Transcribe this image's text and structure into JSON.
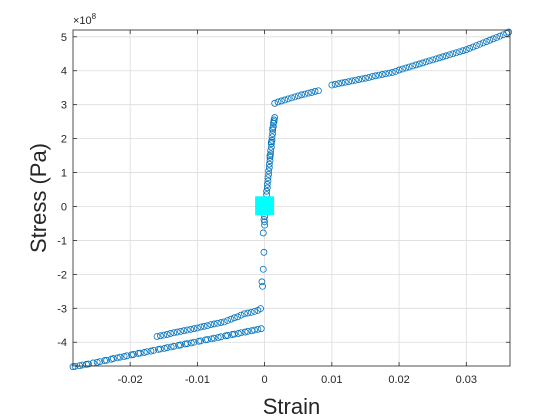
{
  "chart_data": {
    "type": "scatter",
    "xlabel": "Strain",
    "ylabel": "Stress (Pa)",
    "y_exponent_label": "×10",
    "y_exponent_power": "8",
    "xlim": [
      -0.0285,
      0.0365
    ],
    "ylim": [
      -4.7,
      5.2
    ],
    "y_scale": 100000000,
    "grid": true,
    "x_ticks": [
      -0.02,
      -0.01,
      0,
      0.01,
      0.02,
      0.03
    ],
    "x_tick_labels": [
      "-0.02",
      "-0.01",
      "0",
      "0.01",
      "0.02",
      "0.03"
    ],
    "y_ticks": [
      -4,
      -3,
      -2,
      -1,
      0,
      1,
      2,
      3,
      4,
      5
    ],
    "y_tick_labels": [
      "-4",
      "-3",
      "-2",
      "-1",
      "0",
      "1",
      "2",
      "3",
      "4",
      "5"
    ],
    "marker_color": "#0072BD",
    "highlight_color": "#00FFFF",
    "series": [
      {
        "marker": "circle",
        "color": "#0072BD",
        "points": [
          [
            -0.0285,
            -4.72
          ],
          [
            -0.0275,
            -4.69
          ],
          [
            -0.0265,
            -4.65
          ],
          [
            -0.0255,
            -4.61
          ],
          [
            -0.0245,
            -4.57
          ],
          [
            -0.0235,
            -4.53
          ],
          [
            -0.0225,
            -4.48
          ],
          [
            -0.0215,
            -4.44
          ],
          [
            -0.0205,
            -4.4
          ],
          [
            -0.0195,
            -4.36
          ],
          [
            -0.0185,
            -4.32
          ],
          [
            -0.0175,
            -4.28
          ],
          [
            -0.0165,
            -4.24
          ],
          [
            -0.0155,
            -4.2
          ],
          [
            -0.0145,
            -4.16
          ],
          [
            -0.0135,
            -4.12
          ],
          [
            -0.0125,
            -4.08
          ],
          [
            -0.0115,
            -4.04
          ],
          [
            -0.0105,
            -4.0
          ],
          [
            -0.0095,
            -3.96
          ],
          [
            -0.0085,
            -3.92
          ],
          [
            -0.0075,
            -3.88
          ],
          [
            -0.0065,
            -3.84
          ],
          [
            -0.0055,
            -3.8
          ],
          [
            -0.0045,
            -3.76
          ],
          [
            -0.0035,
            -3.72
          ],
          [
            -0.0025,
            -3.68
          ],
          [
            -0.0015,
            -3.64
          ],
          [
            -0.0005,
            -3.6
          ],
          [
            -0.0282,
            -4.71
          ],
          [
            -0.0271,
            -4.67
          ],
          [
            -0.0262,
            -4.64
          ],
          [
            -0.0249,
            -4.59
          ],
          [
            -0.0238,
            -4.54
          ],
          [
            -0.0228,
            -4.5
          ],
          [
            -0.0219,
            -4.46
          ],
          [
            -0.0209,
            -4.42
          ],
          [
            -0.0198,
            -4.37
          ],
          [
            -0.0188,
            -4.33
          ],
          [
            -0.0179,
            -4.3
          ],
          [
            -0.0169,
            -4.26
          ],
          [
            -0.0158,
            -4.21
          ],
          [
            -0.0149,
            -4.18
          ],
          [
            -0.0139,
            -4.14
          ],
          [
            -0.0128,
            -4.09
          ],
          [
            -0.0118,
            -4.05
          ],
          [
            -0.0109,
            -4.02
          ],
          [
            -0.0098,
            -3.97
          ],
          [
            -0.0088,
            -3.93
          ],
          [
            -0.0079,
            -3.9
          ],
          [
            -0.0069,
            -3.86
          ],
          [
            -0.0058,
            -3.81
          ],
          [
            -0.0048,
            -3.77
          ],
          [
            -0.0039,
            -3.74
          ],
          [
            -0.0029,
            -3.7
          ],
          [
            -0.0019,
            -3.66
          ],
          [
            -0.001,
            -3.62
          ],
          [
            -0.016,
            -3.83
          ],
          [
            -0.015,
            -3.79
          ],
          [
            -0.014,
            -3.74
          ],
          [
            -0.013,
            -3.7
          ],
          [
            -0.012,
            -3.66
          ],
          [
            -0.011,
            -3.62
          ],
          [
            -0.01,
            -3.58
          ],
          [
            -0.009,
            -3.53
          ],
          [
            -0.008,
            -3.48
          ],
          [
            -0.007,
            -3.44
          ],
          [
            -0.006,
            -3.4
          ],
          [
            -0.005,
            -3.32
          ],
          [
            -0.004,
            -3.25
          ],
          [
            -0.003,
            -3.16
          ],
          [
            -0.002,
            -3.12
          ],
          [
            -0.001,
            -3.06
          ],
          [
            -0.0006,
            -3.01
          ],
          [
            -0.0155,
            -3.81
          ],
          [
            -0.0145,
            -3.77
          ],
          [
            -0.0135,
            -3.72
          ],
          [
            -0.0125,
            -3.68
          ],
          [
            -0.0115,
            -3.64
          ],
          [
            -0.0105,
            -3.6
          ],
          [
            -0.0095,
            -3.55
          ],
          [
            -0.0085,
            -3.51
          ],
          [
            -0.0075,
            -3.46
          ],
          [
            -0.0065,
            -3.42
          ],
          [
            -0.0055,
            -3.36
          ],
          [
            -0.0045,
            -3.28
          ],
          [
            -0.0035,
            -3.2
          ],
          [
            -0.0025,
            -3.14
          ],
          [
            -0.0015,
            -3.09
          ],
          [
            -0.0003,
            -2.35
          ],
          [
            -0.0004,
            -2.22
          ],
          [
            -0.0002,
            -1.85
          ],
          [
            -0.0001,
            -1.35
          ],
          [
            -0.0002,
            -0.78
          ],
          [
            0.0,
            -0.55
          ],
          [
            0.0,
            -0.45
          ],
          [
            -0.0001,
            -0.38
          ],
          [
            0.0,
            -0.3
          ],
          [
            0.0001,
            0.05
          ],
          [
            0.0002,
            0.2
          ],
          [
            0.0003,
            0.35
          ],
          [
            0.0004,
            0.55
          ],
          [
            0.0005,
            0.75
          ],
          [
            0.0006,
            0.95
          ],
          [
            0.0007,
            1.15
          ],
          [
            0.0008,
            1.35
          ],
          [
            0.0009,
            1.55
          ],
          [
            0.001,
            1.75
          ],
          [
            0.0011,
            1.95
          ],
          [
            0.0012,
            2.15
          ],
          [
            0.0013,
            2.35
          ],
          [
            0.0014,
            2.55
          ],
          [
            0.0013,
            2.45
          ],
          [
            0.0012,
            2.25
          ],
          [
            0.0011,
            2.05
          ],
          [
            0.001,
            1.85
          ],
          [
            0.0009,
            1.65
          ],
          [
            0.0008,
            1.45
          ],
          [
            0.0007,
            1.25
          ],
          [
            0.0006,
            1.05
          ],
          [
            0.0005,
            0.85
          ],
          [
            0.0004,
            0.65
          ],
          [
            0.0003,
            0.45
          ],
          [
            0.0015,
            2.62
          ],
          [
            0.0014,
            2.5
          ],
          [
            0.0012,
            2.3
          ],
          [
            0.001,
            1.9
          ],
          [
            0.0008,
            1.5
          ],
          [
            0.0015,
            3.04
          ],
          [
            0.002,
            3.08
          ],
          [
            0.003,
            3.14
          ],
          [
            0.004,
            3.2
          ],
          [
            0.005,
            3.26
          ],
          [
            0.006,
            3.31
          ],
          [
            0.007,
            3.36
          ],
          [
            0.008,
            3.41
          ],
          [
            0.0025,
            3.11
          ],
          [
            0.0035,
            3.17
          ],
          [
            0.0045,
            3.23
          ],
          [
            0.0055,
            3.29
          ],
          [
            0.0065,
            3.34
          ],
          [
            0.0075,
            3.39
          ],
          [
            0.01,
            3.58
          ],
          [
            0.011,
            3.62
          ],
          [
            0.012,
            3.66
          ],
          [
            0.013,
            3.7
          ],
          [
            0.014,
            3.74
          ],
          [
            0.015,
            3.78
          ],
          [
            0.016,
            3.83
          ],
          [
            0.017,
            3.87
          ],
          [
            0.018,
            3.91
          ],
          [
            0.019,
            3.95
          ],
          [
            0.02,
            4.02
          ],
          [
            0.021,
            4.08
          ],
          [
            0.022,
            4.14
          ],
          [
            0.023,
            4.2
          ],
          [
            0.024,
            4.26
          ],
          [
            0.025,
            4.32
          ],
          [
            0.026,
            4.38
          ],
          [
            0.027,
            4.44
          ],
          [
            0.028,
            4.5
          ],
          [
            0.029,
            4.56
          ],
          [
            0.03,
            4.62
          ],
          [
            0.031,
            4.7
          ],
          [
            0.032,
            4.78
          ],
          [
            0.033,
            4.86
          ],
          [
            0.034,
            4.94
          ],
          [
            0.035,
            5.02
          ],
          [
            0.036,
            5.1
          ],
          [
            0.0363,
            5.14
          ],
          [
            0.0105,
            3.6
          ],
          [
            0.0115,
            3.64
          ],
          [
            0.0125,
            3.68
          ],
          [
            0.0135,
            3.72
          ],
          [
            0.0145,
            3.76
          ],
          [
            0.0155,
            3.8
          ],
          [
            0.0165,
            3.85
          ],
          [
            0.0175,
            3.89
          ],
          [
            0.0185,
            3.93
          ],
          [
            0.0195,
            3.98
          ],
          [
            0.0205,
            4.05
          ],
          [
            0.0215,
            4.11
          ],
          [
            0.0225,
            4.17
          ],
          [
            0.0235,
            4.23
          ],
          [
            0.0245,
            4.29
          ],
          [
            0.0255,
            4.35
          ],
          [
            0.0265,
            4.41
          ],
          [
            0.0275,
            4.47
          ],
          [
            0.0285,
            4.53
          ],
          [
            0.0295,
            4.59
          ],
          [
            0.0305,
            4.66
          ],
          [
            0.0315,
            4.74
          ],
          [
            0.0325,
            4.82
          ],
          [
            0.0335,
            4.9
          ],
          [
            0.0345,
            4.98
          ],
          [
            0.0355,
            5.06
          ]
        ]
      },
      {
        "marker": "square",
        "color": "#00FFFF",
        "points": [
          [
            0.0,
            0.02
          ]
        ]
      }
    ]
  }
}
